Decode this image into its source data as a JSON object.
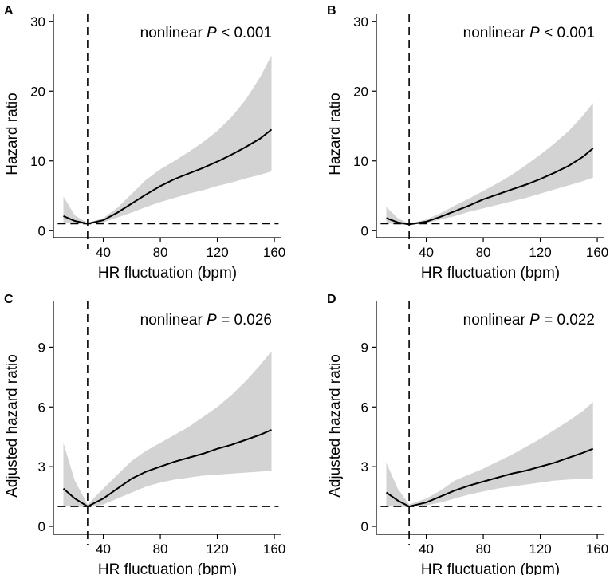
{
  "chart_data": [
    {
      "type": "line",
      "panel": "A",
      "annotation_prefix": "nonlinear ",
      "annotation_p": "P",
      "annotation_suffix": " < 0.001",
      "xlabel": "HR fluctuation (bpm)",
      "ylabel": "Hazard ratio",
      "xlim": [
        5,
        165
      ],
      "ylim": [
        -1,
        31
      ],
      "xticks": [
        40,
        80,
        120,
        160
      ],
      "yticks": [
        0,
        10,
        20,
        30
      ],
      "reference_hr": 1,
      "reference_x": 29,
      "series": [
        {
          "name": "Hazard ratio",
          "x": [
            12,
            20,
            29,
            40,
            50,
            60,
            70,
            80,
            90,
            100,
            110,
            120,
            130,
            140,
            150,
            158
          ],
          "values": [
            2.1,
            1.4,
            1.0,
            1.5,
            2.6,
            3.9,
            5.2,
            6.4,
            7.4,
            8.2,
            9.0,
            9.9,
            10.9,
            12.0,
            13.2,
            14.5
          ]
        },
        {
          "name": "95% CI lower",
          "x": [
            12,
            20,
            29,
            40,
            50,
            60,
            70,
            80,
            90,
            100,
            110,
            120,
            130,
            140,
            150,
            158
          ],
          "values": [
            1.2,
            1.0,
            0.9,
            1.2,
            1.9,
            2.6,
            3.4,
            4.1,
            4.7,
            5.3,
            5.8,
            6.4,
            6.9,
            7.5,
            8.0,
            8.5
          ]
        },
        {
          "name": "95% CI upper",
          "x": [
            12,
            20,
            29,
            40,
            50,
            60,
            70,
            80,
            90,
            100,
            110,
            120,
            130,
            140,
            150,
            158
          ],
          "values": [
            4.9,
            2.2,
            1.1,
            1.8,
            3.3,
            5.3,
            7.3,
            8.8,
            10.0,
            11.3,
            12.7,
            14.3,
            16.3,
            18.8,
            22.0,
            25.1
          ]
        }
      ]
    },
    {
      "type": "line",
      "panel": "B",
      "annotation_prefix": "nonlinear ",
      "annotation_p": "P",
      "annotation_suffix": " < 0.001",
      "xlabel": "HR fluctuation (bpm)",
      "ylabel": "Hazard ratio",
      "xlim": [
        5,
        165
      ],
      "ylim": [
        -1,
        31
      ],
      "xticks": [
        40,
        80,
        120,
        160
      ],
      "yticks": [
        0,
        10,
        20,
        30
      ],
      "reference_hr": 1,
      "reference_x": 28,
      "series": [
        {
          "name": "Hazard ratio",
          "x": [
            12,
            20,
            28,
            40,
            50,
            60,
            70,
            80,
            90,
            100,
            110,
            120,
            130,
            140,
            150,
            157
          ],
          "values": [
            1.8,
            1.2,
            0.9,
            1.3,
            2.0,
            2.8,
            3.6,
            4.5,
            5.2,
            5.9,
            6.6,
            7.4,
            8.3,
            9.3,
            10.6,
            11.8
          ]
        },
        {
          "name": "95% CI lower",
          "x": [
            12,
            20,
            28,
            40,
            50,
            60,
            70,
            80,
            90,
            100,
            110,
            120,
            130,
            140,
            150,
            157
          ],
          "values": [
            1.1,
            0.9,
            0.8,
            1.1,
            1.6,
            2.1,
            2.7,
            3.2,
            3.7,
            4.2,
            4.7,
            5.3,
            5.9,
            6.5,
            7.1,
            7.6
          ]
        },
        {
          "name": "95% CI upper",
          "x": [
            12,
            20,
            28,
            40,
            50,
            60,
            70,
            80,
            90,
            100,
            110,
            120,
            130,
            140,
            150,
            157
          ],
          "values": [
            3.4,
            1.8,
            1.0,
            1.6,
            2.5,
            3.6,
            4.6,
            5.7,
            6.8,
            8.0,
            9.4,
            10.9,
            12.5,
            14.3,
            16.5,
            18.3
          ]
        }
      ]
    },
    {
      "type": "line",
      "panel": "C",
      "annotation_prefix": "nonlinear ",
      "annotation_p": "P",
      "annotation_suffix": " = 0.026",
      "xlabel": "HR fluctuation (bpm)",
      "ylabel": "Adjusted hazard ratio",
      "xlim": [
        5,
        165
      ],
      "ylim": [
        -0.4,
        11.3
      ],
      "xticks": [
        40,
        80,
        120,
        160
      ],
      "yticks": [
        0,
        3,
        6,
        9
      ],
      "reference_hr": 1,
      "reference_x": 29,
      "series": [
        {
          "name": "Adjusted hazard ratio",
          "x": [
            12,
            20,
            29,
            40,
            50,
            60,
            70,
            80,
            90,
            100,
            110,
            120,
            130,
            140,
            150,
            158
          ],
          "values": [
            1.9,
            1.4,
            1.0,
            1.4,
            1.9,
            2.4,
            2.75,
            3.0,
            3.25,
            3.45,
            3.65,
            3.9,
            4.1,
            4.35,
            4.6,
            4.85
          ]
        },
        {
          "name": "95% CI lower",
          "x": [
            12,
            20,
            29,
            40,
            50,
            60,
            70,
            80,
            90,
            100,
            110,
            120,
            130,
            140,
            150,
            158
          ],
          "values": [
            1.0,
            1.0,
            0.95,
            1.1,
            1.4,
            1.7,
            2.0,
            2.2,
            2.35,
            2.45,
            2.55,
            2.6,
            2.65,
            2.7,
            2.75,
            2.8
          ]
        },
        {
          "name": "95% CI upper",
          "x": [
            12,
            20,
            29,
            40,
            50,
            60,
            70,
            80,
            90,
            100,
            110,
            120,
            130,
            140,
            150,
            158
          ],
          "values": [
            4.2,
            2.3,
            1.1,
            1.9,
            2.6,
            3.3,
            3.8,
            4.2,
            4.6,
            5.0,
            5.5,
            6.0,
            6.6,
            7.3,
            8.1,
            8.8
          ]
        }
      ]
    },
    {
      "type": "line",
      "panel": "D",
      "annotation_prefix": "nonlinear ",
      "annotation_p": "P",
      "annotation_suffix": " = 0.022",
      "xlabel": "HR fluctuation (bpm)",
      "ylabel": "Adjusted hazard ratio",
      "xlim": [
        5,
        165
      ],
      "ylim": [
        -0.4,
        11.3
      ],
      "xticks": [
        40,
        80,
        120,
        160
      ],
      "yticks": [
        0,
        3,
        6,
        9
      ],
      "reference_hr": 1,
      "reference_x": 28,
      "series": [
        {
          "name": "Adjusted hazard ratio",
          "x": [
            12,
            20,
            28,
            40,
            50,
            60,
            70,
            80,
            90,
            100,
            110,
            120,
            130,
            140,
            150,
            157
          ],
          "values": [
            1.7,
            1.3,
            1.0,
            1.2,
            1.5,
            1.8,
            2.05,
            2.25,
            2.45,
            2.65,
            2.8,
            3.0,
            3.2,
            3.45,
            3.7,
            3.9
          ]
        },
        {
          "name": "95% CI lower",
          "x": [
            12,
            20,
            28,
            40,
            50,
            60,
            70,
            80,
            90,
            100,
            110,
            120,
            130,
            140,
            150,
            157
          ],
          "values": [
            1.0,
            1.0,
            0.95,
            1.05,
            1.2,
            1.4,
            1.6,
            1.75,
            1.9,
            2.0,
            2.1,
            2.2,
            2.3,
            2.35,
            2.4,
            2.4
          ]
        },
        {
          "name": "95% CI upper",
          "x": [
            12,
            20,
            28,
            40,
            50,
            60,
            70,
            80,
            90,
            100,
            110,
            120,
            130,
            140,
            150,
            157
          ],
          "values": [
            3.2,
            1.9,
            1.1,
            1.4,
            1.8,
            2.3,
            2.6,
            2.9,
            3.25,
            3.6,
            4.0,
            4.4,
            4.85,
            5.3,
            5.8,
            6.25
          ]
        }
      ]
    }
  ]
}
